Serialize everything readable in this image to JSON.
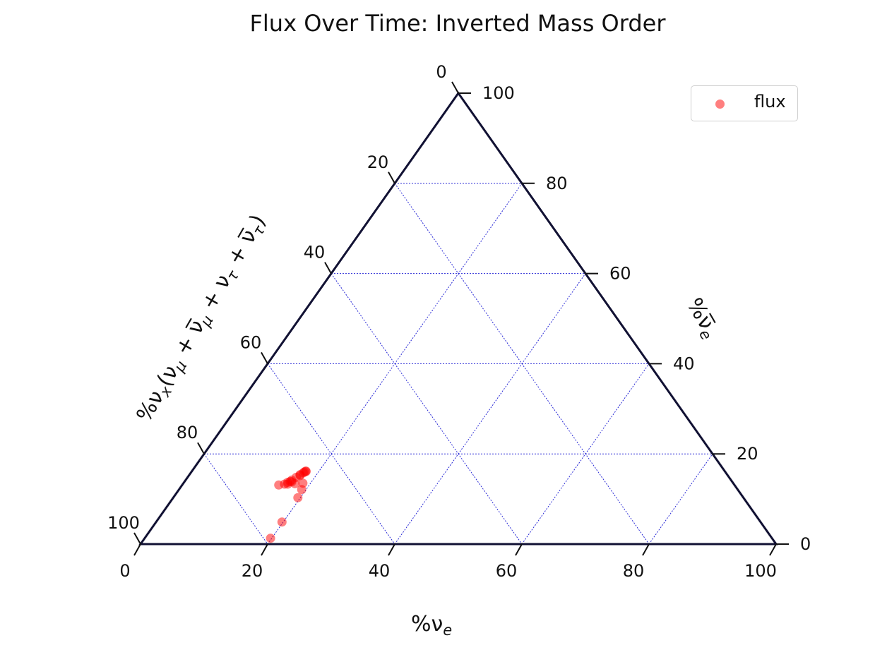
{
  "chart_data": {
    "type": "scatter",
    "projection": "ternary",
    "title": "Flux Over Time: Inverted Mass Order",
    "axes": {
      "bottom": {
        "label_main": "%ν",
        "label_sub": "e",
        "ticks": [
          "0",
          "20",
          "40",
          "60",
          "80",
          "100"
        ],
        "range": [
          0,
          100
        ]
      },
      "right": {
        "label_main": "%ν̅",
        "label_sub": "e",
        "ticks": [
          "0",
          "20",
          "40",
          "60",
          "80",
          "100"
        ],
        "range": [
          0,
          100
        ]
      },
      "left": {
        "label_prefix": "%ν",
        "label_sub": "x",
        "label_paren": "(ν",
        "label_mu": "μ",
        "label_plus": " + ",
        "label_numubar": "ν̅",
        "label_nutau": "ν",
        "label_tau": "τ",
        "label_close": ")",
        "ticks": [
          "0",
          "20",
          "40",
          "60",
          "80",
          "100"
        ],
        "range": [
          0,
          100
        ]
      }
    },
    "grid": true,
    "legend": {
      "position": "top-right",
      "entries": [
        {
          "name": "flux",
          "color": "#ff0000"
        }
      ]
    },
    "series": [
      {
        "name": "flux",
        "color": "#ff0000",
        "points": [
          {
            "nue": 19.8,
            "nuebar": 1.3,
            "nux": 78.9
          },
          {
            "nue": 19.8,
            "nuebar": 4.9,
            "nux": 75.3
          },
          {
            "nue": 19.6,
            "nuebar": 10.3,
            "nux": 70.1
          },
          {
            "nue": 19.3,
            "nuebar": 12.1,
            "nux": 68.6
          },
          {
            "nue": 18.8,
            "nuebar": 13.5,
            "nux": 67.7
          },
          {
            "nue": 17.6,
            "nuebar": 13.4,
            "nux": 69.0
          },
          {
            "nue": 16.5,
            "nuebar": 13.3,
            "nux": 70.2
          },
          {
            "nue": 16.9,
            "nuebar": 13.8,
            "nux": 69.3
          },
          {
            "nue": 16.3,
            "nuebar": 13.7,
            "nux": 70.0
          },
          {
            "nue": 16.0,
            "nuebar": 13.3,
            "nux": 70.7
          },
          {
            "nue": 15.2,
            "nuebar": 13.1,
            "nux": 71.7
          },
          {
            "nue": 16.7,
            "nuebar": 14.2,
            "nux": 69.1
          },
          {
            "nue": 17.1,
            "nuebar": 14.8,
            "nux": 68.1
          },
          {
            "nue": 17.4,
            "nuebar": 15.4,
            "nux": 67.2
          },
          {
            "nue": 17.7,
            "nuebar": 15.8,
            "nux": 66.5
          },
          {
            "nue": 17.8,
            "nuebar": 16.0,
            "nux": 66.2
          },
          {
            "nue": 18.0,
            "nuebar": 16.1,
            "nux": 65.9
          },
          {
            "nue": 17.9,
            "nuebar": 16.2,
            "nux": 65.9
          },
          {
            "nue": 17.5,
            "nuebar": 15.2,
            "nux": 67.3
          },
          {
            "nue": 16.6,
            "nuebar": 13.9,
            "nux": 69.5
          }
        ]
      }
    ]
  }
}
